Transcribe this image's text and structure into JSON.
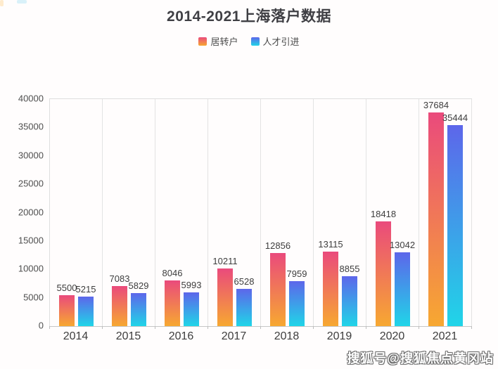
{
  "header": {
    "title": "2014-2021上海落户数据"
  },
  "legend": [
    {
      "label": "居转户",
      "color_top": "#ea4a7c",
      "color_bottom": "#f7a831"
    },
    {
      "label": "人才引进",
      "color_top": "#5d66ea",
      "color_bottom": "#20d5e8"
    }
  ],
  "chart_data": {
    "type": "bar",
    "title": "2014-2021上海落户数据",
    "categories": [
      "2014",
      "2015",
      "2016",
      "2017",
      "2018",
      "2019",
      "2020",
      "2021"
    ],
    "series": [
      {
        "name": "居转户",
        "values": [
          5500,
          7083,
          8046,
          10211,
          12856,
          13115,
          18418,
          37684
        ],
        "gradient": [
          "#ea4a7c",
          "#f7a831"
        ]
      },
      {
        "name": "人才引进",
        "values": [
          5215,
          5829,
          5993,
          6528,
          7959,
          8855,
          13042,
          35444
        ],
        "gradient": [
          "#5d66ea",
          "#20d5e8"
        ]
      }
    ],
    "xlabel": "",
    "ylabel": "",
    "ylim": [
      0,
      40000
    ],
    "yticks": [
      0,
      5000,
      10000,
      15000,
      20000,
      25000,
      30000,
      35000,
      40000
    ],
    "grid": "vertical-category-separators",
    "legend_position": "top",
    "data_labels": true
  },
  "watermark": {
    "text": "搜狐号@搜狐焦点黄冈站"
  }
}
